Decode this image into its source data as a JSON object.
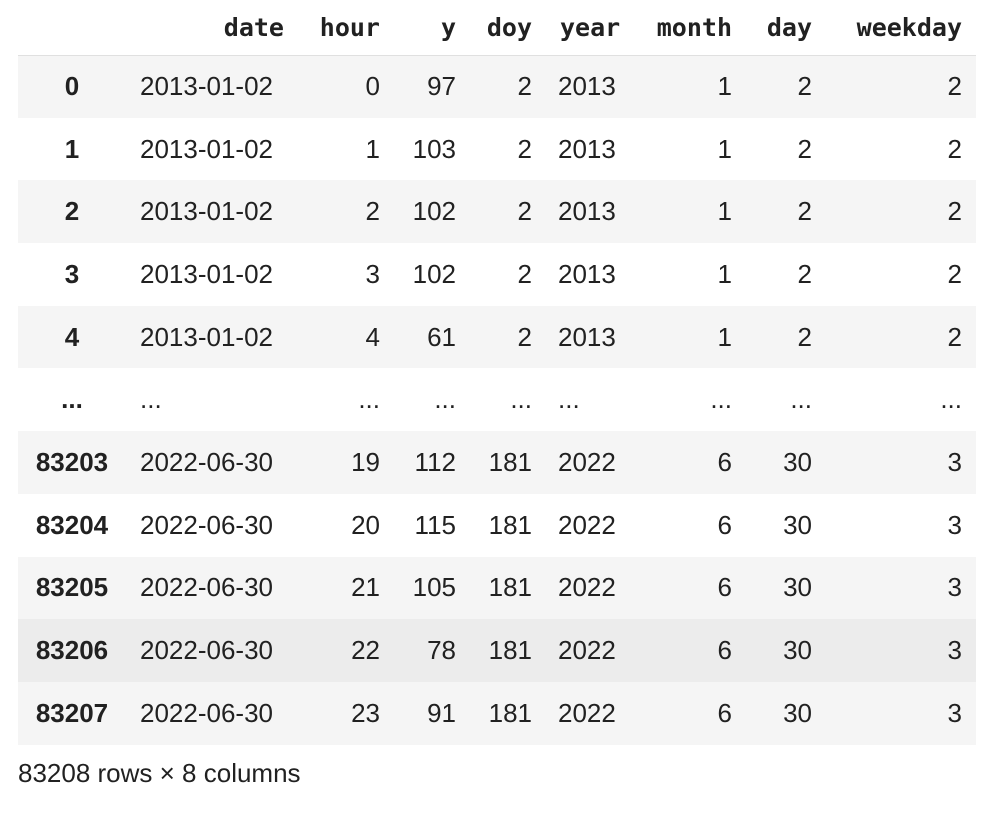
{
  "table": {
    "columns": [
      "",
      "date",
      "hour",
      "y",
      "doy",
      "year",
      "month",
      "day",
      "weekday"
    ],
    "rows": [
      [
        "0",
        "2013-01-02",
        "0",
        "97",
        "2",
        "2013",
        "1",
        "2",
        "2"
      ],
      [
        "1",
        "2013-01-02",
        "1",
        "103",
        "2",
        "2013",
        "1",
        "2",
        "2"
      ],
      [
        "2",
        "2013-01-02",
        "2",
        "102",
        "2",
        "2013",
        "1",
        "2",
        "2"
      ],
      [
        "3",
        "2013-01-02",
        "3",
        "102",
        "2",
        "2013",
        "1",
        "2",
        "2"
      ],
      [
        "4",
        "2013-01-02",
        "4",
        "61",
        "2",
        "2013",
        "1",
        "2",
        "2"
      ],
      [
        "...",
        "...",
        "...",
        "...",
        "...",
        "...",
        "...",
        "...",
        "..."
      ],
      [
        "83203",
        "2022-06-30",
        "19",
        "112",
        "181",
        "2022",
        "6",
        "30",
        "3"
      ],
      [
        "83204",
        "2022-06-30",
        "20",
        "115",
        "181",
        "2022",
        "6",
        "30",
        "3"
      ],
      [
        "83205",
        "2022-06-30",
        "21",
        "105",
        "181",
        "2022",
        "6",
        "30",
        "3"
      ],
      [
        "83206",
        "2022-06-30",
        "22",
        "78",
        "181",
        "2022",
        "6",
        "30",
        "3"
      ],
      [
        "83207",
        "2022-06-30",
        "23",
        "91",
        "181",
        "2022",
        "6",
        "30",
        "3"
      ]
    ]
  },
  "caption": "83208 rows × 8 columns"
}
